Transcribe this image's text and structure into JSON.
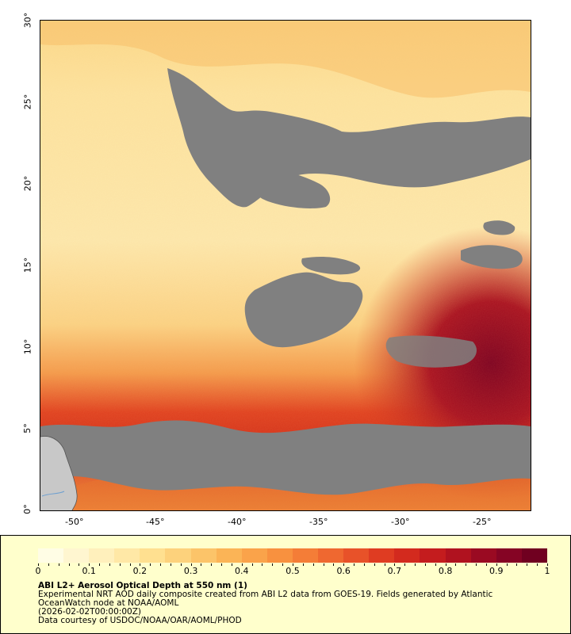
{
  "map": {
    "lon_labels": [
      "-50°",
      "-45°",
      "-40°",
      "-35°",
      "-30°",
      "-25°"
    ],
    "lat_labels": [
      "0°",
      "5°",
      "10°",
      "15°",
      "20°",
      "25°",
      "30°"
    ],
    "colors": {
      "no_data": "#808080",
      "land": "#c8c8c8",
      "aod_low": "#fff2c0",
      "aod_mid": "#f8b855",
      "aod_high": "#e8401c",
      "aod_max": "#800020"
    }
  },
  "legend": {
    "tick_labels": [
      "0",
      "0.1",
      "0.2",
      "0.3",
      "0.4",
      "0.5",
      "0.6",
      "0.7",
      "0.8",
      "0.9",
      "1"
    ],
    "title": "ABI L2+ Aerosol Optical Depth at 550 nm (1)",
    "description_line1": "Experimental NRT AOD daily composite created from ABI L2 data from GOES-19. Fields generated by Atlantic",
    "description_line2": "OceanWatch node at NOAA/AOML",
    "timestamp": "(2026-02-02T00:00:00Z)",
    "credit": "Data courtesy of USDOC/NOAA/OAR/AOML/PHOD",
    "colorbar_colors": [
      "#fffde5",
      "#fff6d0",
      "#fff0bc",
      "#ffe8a6",
      "#ffe090",
      "#fdd27c",
      "#fcc469",
      "#fbb456",
      "#faa34a",
      "#f8913f",
      "#f47d37",
      "#ef6830",
      "#e85229",
      "#df3c22",
      "#d32a1e",
      "#c41c1e",
      "#b0121f",
      "#9a0a22",
      "#850424",
      "#700020"
    ]
  }
}
